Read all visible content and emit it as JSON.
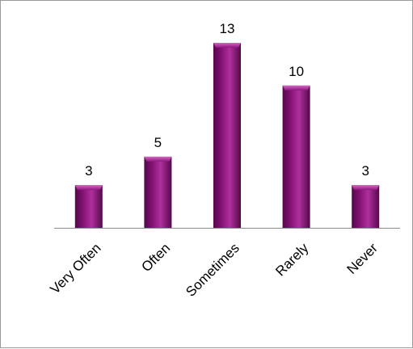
{
  "chart_data": {
    "type": "bar",
    "categories": [
      "Very Often",
      "Often",
      "Sometimes",
      "Rarely",
      "Never"
    ],
    "values": [
      3,
      5,
      13,
      10,
      3
    ],
    "title": "",
    "xlabel": "",
    "ylabel": "",
    "ylim": [
      0,
      13
    ],
    "grid": false,
    "legend": "none",
    "show_data_labels": true,
    "bar_color": "#7d0f6e",
    "bar_highlight": "#b0309c",
    "bar_shadow": "#55084a",
    "axis_color": "#8c8c8c"
  }
}
